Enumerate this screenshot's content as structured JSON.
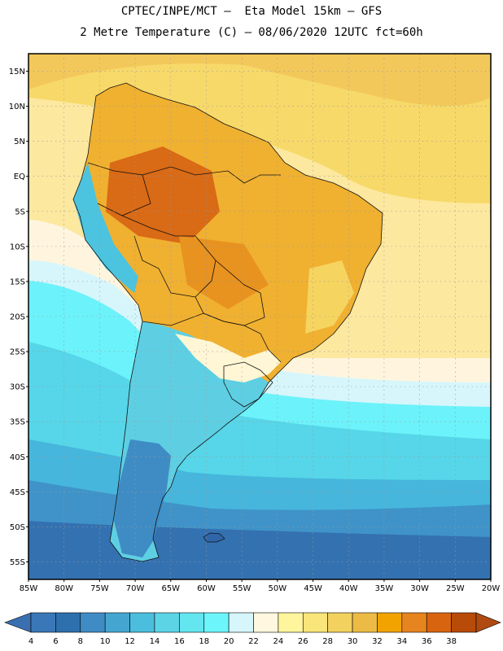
{
  "header": {
    "line1": "CPTEC/INPE/MCT –  Eta Model 15km – GFS",
    "line2": "2 Metre Temperature (C) – 08/06/2020 12UTC fct=60h"
  },
  "map": {
    "lat_labels": [
      "15N",
      "10N",
      "5N",
      "EQ",
      "5S",
      "10S",
      "15S",
      "20S",
      "25S",
      "30S",
      "35S",
      "40S",
      "45S",
      "50S",
      "55S"
    ],
    "lon_labels": [
      "85W",
      "80W",
      "75W",
      "70W",
      "65W",
      "60W",
      "55W",
      "50W",
      "45W",
      "40W",
      "35W",
      "30W",
      "25W",
      "20W"
    ],
    "lat_range": [
      17.5,
      -57.5
    ],
    "lon_range": [
      -85,
      -20
    ]
  },
  "colorbar": {
    "labels": [
      "4",
      "6",
      "8",
      "10",
      "12",
      "14",
      "16",
      "18",
      "20",
      "22",
      "24",
      "26",
      "28",
      "30",
      "32",
      "34",
      "36",
      "38"
    ],
    "colors": [
      "#3a77b8",
      "#2e6fae",
      "#3f8cc4",
      "#44a6d0",
      "#4cbedd",
      "#5cd4e6",
      "#63e6ef",
      "#6cf6fb",
      "#d6f6fb",
      "#fff7df",
      "#fff59c",
      "#f9e57a",
      "#f2d15f",
      "#ecbb45",
      "#f2a300",
      "#e6841f",
      "#d96410",
      "#b84b08"
    ],
    "under_color": "#3a6fb0",
    "over_color": "#b04a10"
  }
}
